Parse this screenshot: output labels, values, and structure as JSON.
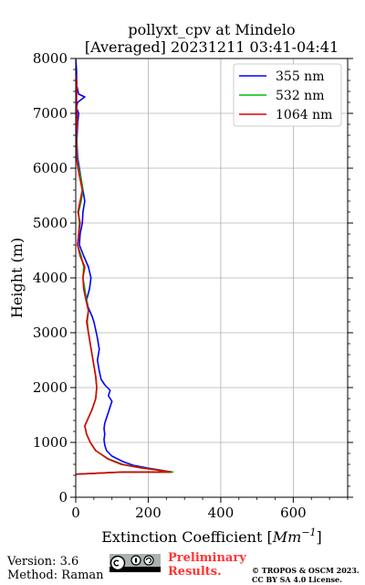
{
  "chart_data": {
    "type": "line",
    "title": [
      "pollyxt_cpv at Mindelo",
      "[Averaged] 20231211 03:41-04:41"
    ],
    "xlabel": "Extinction Coefficient",
    "xlabel_unit": "Mm",
    "xlabel_unit_exp": "−1",
    "ylabel": "Height (m)",
    "xlim": [
      0,
      750
    ],
    "ylim": [
      0,
      8000
    ],
    "xticks": [
      0,
      200,
      400,
      600
    ],
    "yticks": [
      0,
      1000,
      2000,
      3000,
      4000,
      5000,
      6000,
      7000,
      8000
    ],
    "grid": true,
    "legend_position": "top-right",
    "series": [
      {
        "name": "355 nm",
        "color": "#0000ff",
        "points": [
          [
            0,
            420
          ],
          [
            130,
            460
          ],
          [
            265,
            460
          ],
          [
            230,
            500
          ],
          [
            200,
            530
          ],
          [
            160,
            580
          ],
          [
            130,
            650
          ],
          [
            100,
            750
          ],
          [
            85,
            850
          ],
          [
            80,
            950
          ],
          [
            78,
            1050
          ],
          [
            80,
            1150
          ],
          [
            78,
            1250
          ],
          [
            80,
            1350
          ],
          [
            85,
            1450
          ],
          [
            90,
            1550
          ],
          [
            95,
            1650
          ],
          [
            100,
            1750
          ],
          [
            90,
            1850
          ],
          [
            95,
            1950
          ],
          [
            80,
            2050
          ],
          [
            70,
            2150
          ],
          [
            65,
            2300
          ],
          [
            60,
            2500
          ],
          [
            65,
            2700
          ],
          [
            60,
            2900
          ],
          [
            55,
            3050
          ],
          [
            50,
            3200
          ],
          [
            45,
            3300
          ],
          [
            35,
            3450
          ],
          [
            30,
            3600
          ],
          [
            38,
            3800
          ],
          [
            42,
            4000
          ],
          [
            35,
            4200
          ],
          [
            22,
            4400
          ],
          [
            10,
            4600
          ],
          [
            12,
            4800
          ],
          [
            18,
            5000
          ],
          [
            20,
            5200
          ],
          [
            25,
            5400
          ],
          [
            20,
            5600
          ],
          [
            15,
            5800
          ],
          [
            10,
            6000
          ],
          [
            5,
            6200
          ],
          [
            3,
            6500
          ],
          [
            5,
            6800
          ],
          [
            8,
            7000
          ],
          [
            2,
            7100
          ],
          [
            5,
            7200
          ],
          [
            25,
            7300
          ],
          [
            8,
            7350
          ],
          [
            3,
            7500
          ],
          [
            2,
            7800
          ],
          [
            0,
            8000
          ]
        ]
      },
      {
        "name": "532 nm",
        "color": "#00bb00",
        "points": [
          [
            0,
            420
          ],
          [
            130,
            460
          ],
          [
            268,
            460
          ],
          [
            225,
            500
          ],
          [
            180,
            540
          ],
          [
            130,
            600
          ],
          [
            90,
            700
          ],
          [
            55,
            850
          ],
          [
            40,
            1000
          ],
          [
            30,
            1150
          ],
          [
            25,
            1300
          ],
          [
            35,
            1450
          ],
          [
            45,
            1600
          ],
          [
            55,
            1800
          ],
          [
            58,
            2000
          ],
          [
            55,
            2200
          ],
          [
            50,
            2400
          ],
          [
            45,
            2600
          ],
          [
            40,
            2800
          ],
          [
            35,
            3000
          ],
          [
            32,
            3200
          ],
          [
            35,
            3400
          ],
          [
            30,
            3600
          ],
          [
            25,
            3800
          ],
          [
            20,
            4000
          ],
          [
            22,
            4200
          ],
          [
            15,
            4400
          ],
          [
            5,
            4600
          ],
          [
            8,
            4800
          ],
          [
            10,
            5000
          ],
          [
            8,
            5200
          ],
          [
            15,
            5400
          ],
          [
            20,
            5600
          ],
          [
            15,
            5800
          ],
          [
            8,
            6000
          ],
          [
            3,
            6200
          ],
          [
            2,
            6600
          ],
          [
            3,
            6850
          ],
          [
            0,
            7000
          ]
        ]
      },
      {
        "name": "1064 nm",
        "color": "#dd0000",
        "points": [
          [
            0,
            420
          ],
          [
            130,
            460
          ],
          [
            262,
            460
          ],
          [
            220,
            500
          ],
          [
            175,
            540
          ],
          [
            125,
            600
          ],
          [
            88,
            700
          ],
          [
            55,
            850
          ],
          [
            40,
            1000
          ],
          [
            30,
            1150
          ],
          [
            25,
            1300
          ],
          [
            35,
            1450
          ],
          [
            45,
            1600
          ],
          [
            55,
            1800
          ],
          [
            58,
            2000
          ],
          [
            55,
            2200
          ],
          [
            50,
            2400
          ],
          [
            45,
            2600
          ],
          [
            40,
            2800
          ],
          [
            35,
            3000
          ],
          [
            30,
            3200
          ],
          [
            35,
            3400
          ],
          [
            28,
            3600
          ],
          [
            22,
            3800
          ],
          [
            20,
            4000
          ],
          [
            25,
            4200
          ],
          [
            12,
            4400
          ],
          [
            5,
            4600
          ],
          [
            8,
            4800
          ],
          [
            12,
            5000
          ],
          [
            6,
            5200
          ],
          [
            12,
            5400
          ],
          [
            18,
            5600
          ],
          [
            12,
            5800
          ],
          [
            6,
            6000
          ],
          [
            2,
            6200
          ],
          [
            1,
            6600
          ],
          [
            4,
            6850
          ],
          [
            2,
            7200
          ],
          [
            3,
            7500
          ],
          [
            1,
            7700
          ]
        ]
      }
    ]
  },
  "footer": {
    "version": "Version: 3.6",
    "method": "Method: Raman",
    "preliminary": [
      "Preliminary",
      "Results."
    ],
    "copyright": [
      "© TROPOS & OSCM 2023.",
      "CC BY SA 4.0 License."
    ]
  }
}
